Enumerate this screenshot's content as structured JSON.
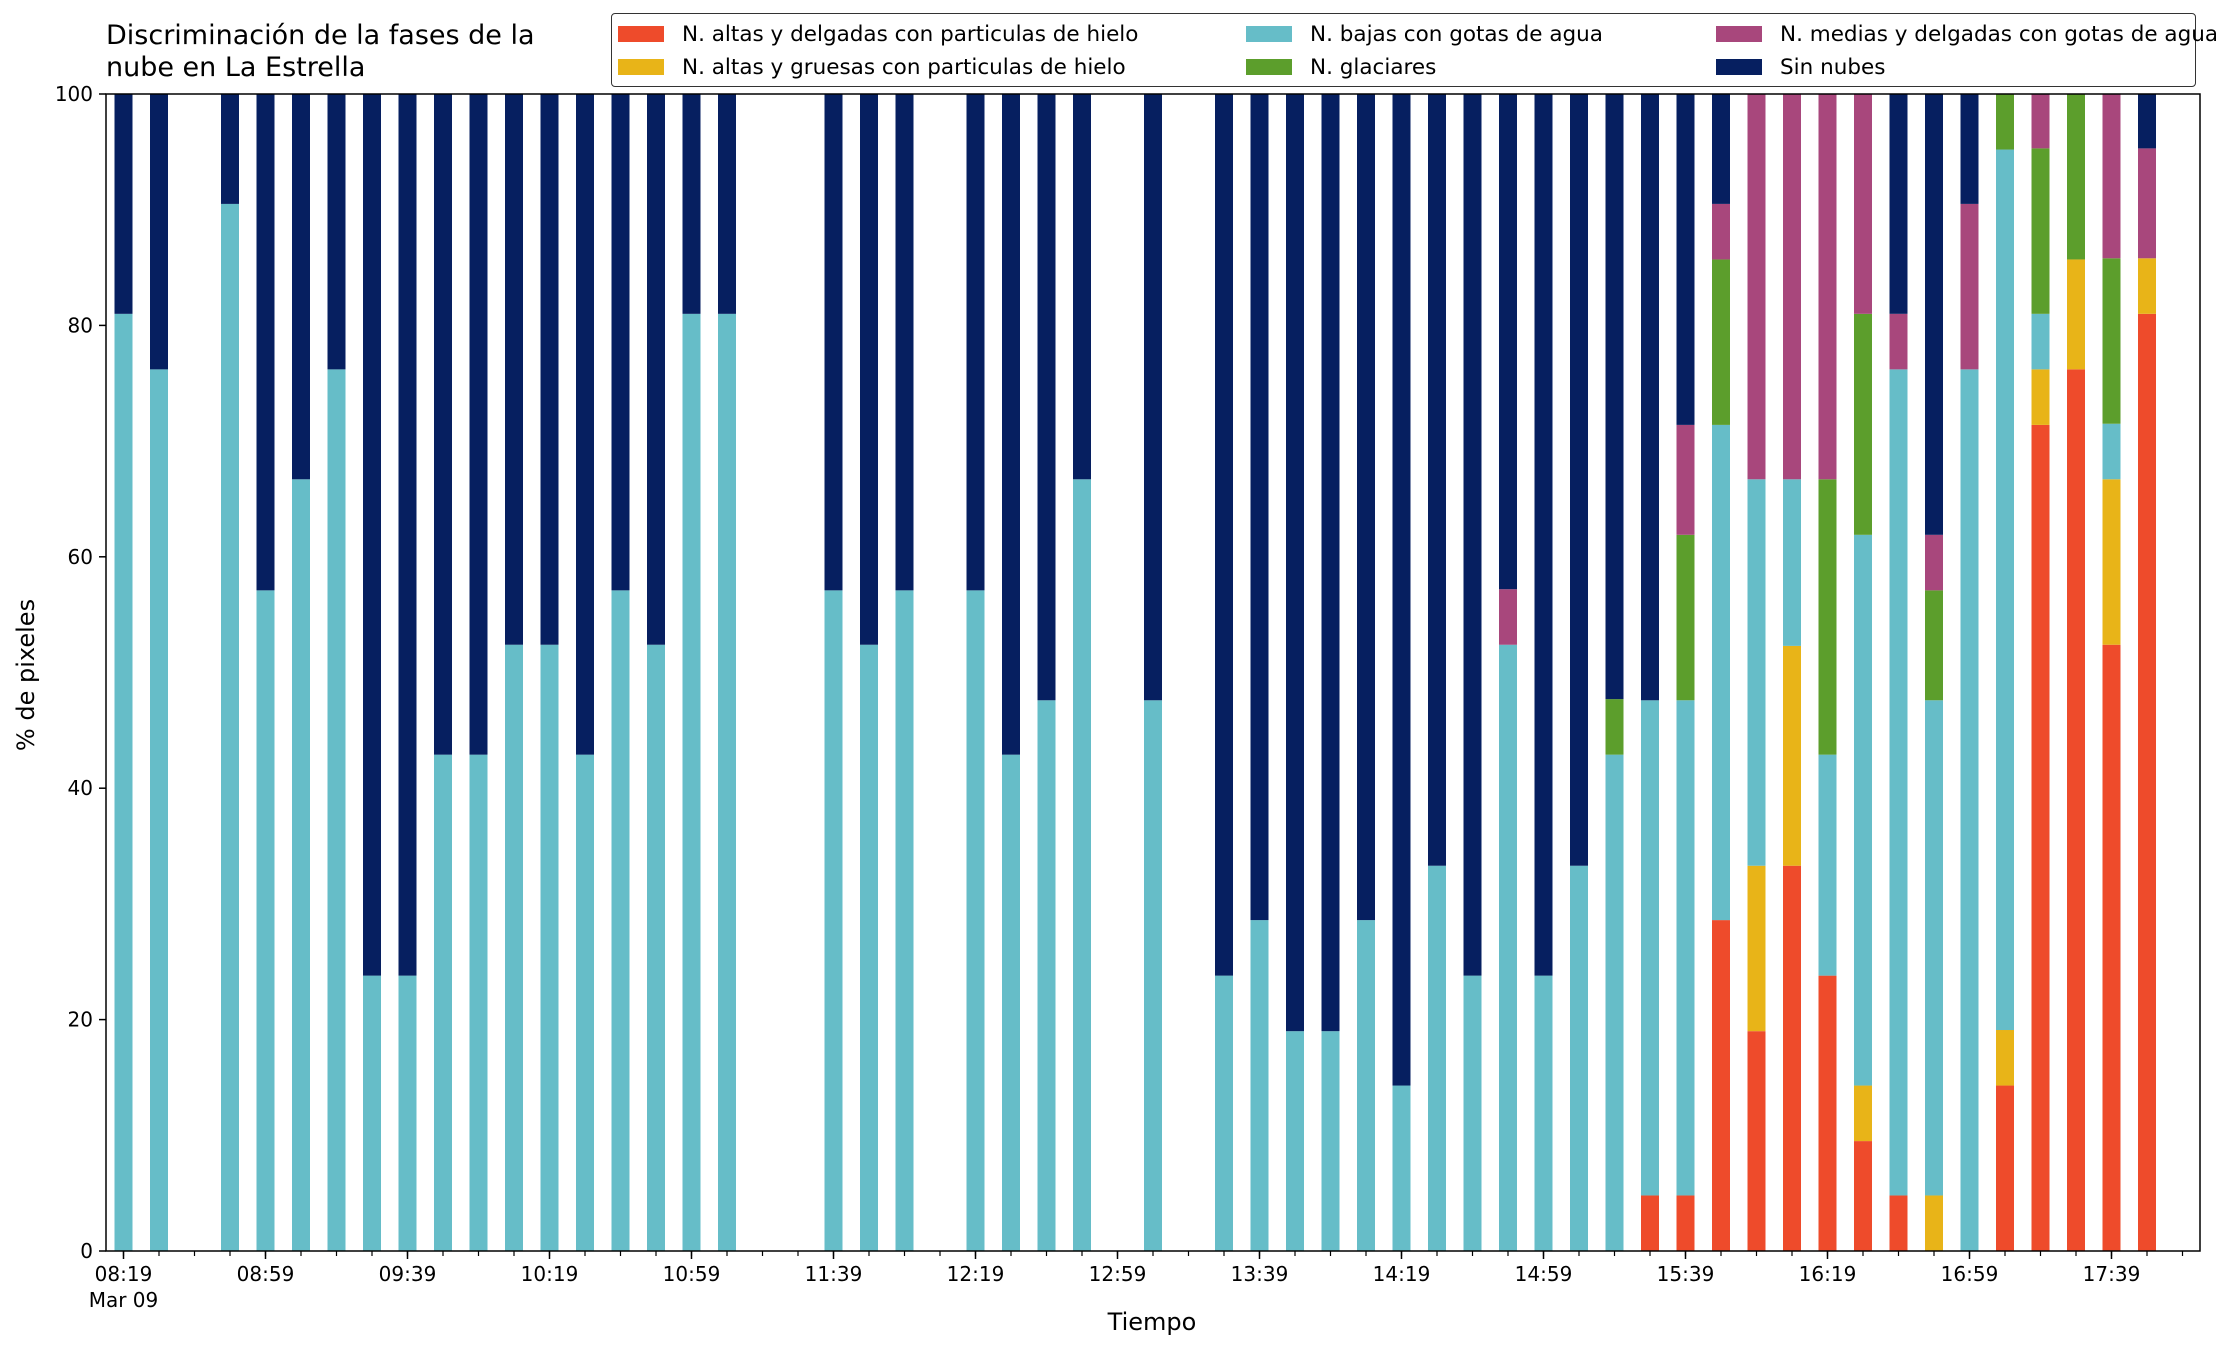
{
  "chart_data": {
    "type": "bar",
    "stacked": true,
    "title_line1": "Discriminación de la fases de la",
    "title_line2": "nube en La Estrella",
    "xlabel": "Tiempo",
    "ylabel": "% de pixeles",
    "ylim": [
      0,
      100
    ],
    "yticks": [
      "0",
      "20",
      "40",
      "60",
      "80",
      "100"
    ],
    "xtick_labels": [
      "08:19",
      "08:59",
      "09:39",
      "10:19",
      "10:59",
      "11:39",
      "12:19",
      "12:59",
      "13:39",
      "14:19",
      "14:59",
      "15:39",
      "16:19",
      "16:59",
      "17:39"
    ],
    "xtick_sublabel": "Mar 09",
    "time_start": "08:19",
    "interval_minutes": 10,
    "legend_location": "top-right",
    "grid": false,
    "series": [
      {
        "name": "N. altas y delgadas con particulas de hielo",
        "color": "#ee4b2b"
      },
      {
        "name": "N. altas y gruesas con particulas de hielo",
        "color": "#e8b418"
      },
      {
        "name": "N. bajas con gotas de agua",
        "color": "#66bdc8"
      },
      {
        "name": "N. glaciares",
        "color": "#5c9e2c"
      },
      {
        "name": "N. medias y delgadas con gotas de agua",
        "color": "#a8477c"
      },
      {
        "name": "Sin nubes",
        "color": "#061f60"
      }
    ],
    "bars": [
      {
        "time": "08:19",
        "values": [
          0,
          0,
          81,
          0,
          0,
          19
        ]
      },
      {
        "time": "08:29",
        "values": [
          0,
          0,
          76.2,
          0,
          0,
          23.8
        ]
      },
      {
        "time": "08:49",
        "values": [
          0,
          0,
          90.5,
          0,
          0,
          9.5
        ]
      },
      {
        "time": "08:59",
        "values": [
          0,
          0,
          57.1,
          0,
          0,
          42.9
        ]
      },
      {
        "time": "09:09",
        "values": [
          0,
          0,
          66.7,
          0,
          0,
          33.3
        ]
      },
      {
        "time": "09:19",
        "values": [
          0,
          0,
          76.2,
          0,
          0,
          23.8
        ]
      },
      {
        "time": "09:29",
        "values": [
          0,
          0,
          23.8,
          0,
          0,
          76.2
        ]
      },
      {
        "time": "09:39",
        "values": [
          0,
          0,
          23.8,
          0,
          0,
          76.2
        ]
      },
      {
        "time": "09:49",
        "values": [
          0,
          0,
          42.9,
          0,
          0,
          57.1
        ]
      },
      {
        "time": "09:59",
        "values": [
          0,
          0,
          42.9,
          0,
          0,
          57.1
        ]
      },
      {
        "time": "10:09",
        "values": [
          0,
          0,
          52.4,
          0,
          0,
          47.6
        ]
      },
      {
        "time": "10:19",
        "values": [
          0,
          0,
          52.4,
          0,
          0,
          47.6
        ]
      },
      {
        "time": "10:29",
        "values": [
          0,
          0,
          42.9,
          0,
          0,
          57.1
        ]
      },
      {
        "time": "10:39",
        "values": [
          0,
          0,
          57.1,
          0,
          0,
          42.9
        ]
      },
      {
        "time": "10:49",
        "values": [
          0,
          0,
          52.4,
          0,
          0,
          47.6
        ]
      },
      {
        "time": "10:59",
        "values": [
          0,
          0,
          81,
          0,
          0,
          19
        ]
      },
      {
        "time": "11:09",
        "values": [
          0,
          0,
          81,
          0,
          0,
          19
        ]
      },
      {
        "time": "11:39",
        "values": [
          0,
          0,
          57.1,
          0,
          0,
          42.9
        ]
      },
      {
        "time": "11:49",
        "values": [
          0,
          0,
          52.4,
          0,
          0,
          47.6
        ]
      },
      {
        "time": "11:59",
        "values": [
          0,
          0,
          57.1,
          0,
          0,
          42.9
        ]
      },
      {
        "time": "12:19",
        "values": [
          0,
          0,
          57.1,
          0,
          0,
          42.9
        ]
      },
      {
        "time": "12:29",
        "values": [
          0,
          0,
          42.9,
          0,
          0,
          57.1
        ]
      },
      {
        "time": "12:39",
        "values": [
          0,
          0,
          47.6,
          0,
          0,
          52.4
        ]
      },
      {
        "time": "12:49",
        "values": [
          0,
          0,
          66.7,
          0,
          0,
          33.3
        ]
      },
      {
        "time": "13:09",
        "values": [
          0,
          0,
          47.6,
          0,
          0,
          52.4
        ]
      },
      {
        "time": "13:29",
        "values": [
          0,
          0,
          23.8,
          0,
          0,
          76.2
        ]
      },
      {
        "time": "13:39",
        "values": [
          0,
          0,
          28.6,
          0,
          0,
          71.4
        ]
      },
      {
        "time": "13:49",
        "values": [
          0,
          0,
          19,
          0,
          0,
          81
        ]
      },
      {
        "time": "13:59",
        "values": [
          0,
          0,
          19,
          0,
          0,
          81
        ]
      },
      {
        "time": "14:09",
        "values": [
          0,
          0,
          28.6,
          0,
          0,
          71.4
        ]
      },
      {
        "time": "14:19",
        "values": [
          0,
          0,
          14.3,
          0,
          0,
          85.7
        ]
      },
      {
        "time": "14:29",
        "values": [
          0,
          0,
          33.3,
          0,
          0,
          66.7
        ]
      },
      {
        "time": "14:39",
        "values": [
          0,
          0,
          23.8,
          0,
          0,
          76.2
        ]
      },
      {
        "time": "14:49",
        "values": [
          0,
          0,
          52.4,
          0,
          4.8,
          42.8
        ]
      },
      {
        "time": "14:59",
        "values": [
          0,
          0,
          23.8,
          0,
          0,
          76.2
        ]
      },
      {
        "time": "15:09",
        "values": [
          0,
          0,
          33.3,
          0,
          0,
          66.7
        ]
      },
      {
        "time": "15:19",
        "values": [
          0,
          0,
          42.9,
          4.8,
          0,
          52.3
        ]
      },
      {
        "time": "15:29",
        "values": [
          4.8,
          0,
          42.8,
          0,
          0,
          52.4
        ]
      },
      {
        "time": "15:39",
        "values": [
          4.8,
          0,
          42.8,
          14.3,
          9.5,
          28.6
        ]
      },
      {
        "time": "15:49",
        "values": [
          28.6,
          0,
          42.8,
          14.3,
          4.8,
          9.5
        ]
      },
      {
        "time": "15:59",
        "values": [
          19,
          14.3,
          33.4,
          0,
          33.3,
          0
        ]
      },
      {
        "time": "16:09",
        "values": [
          33.3,
          19,
          14.4,
          0,
          33.3,
          0
        ]
      },
      {
        "time": "16:19",
        "values": [
          23.8,
          0,
          19.1,
          23.8,
          33.3,
          0
        ]
      },
      {
        "time": "16:29",
        "values": [
          9.5,
          4.8,
          47.6,
          19.1,
          19,
          0
        ]
      },
      {
        "time": "16:39",
        "values": [
          4.8,
          0,
          71.4,
          0,
          4.8,
          19
        ]
      },
      {
        "time": "16:49",
        "values": [
          0,
          4.8,
          42.8,
          9.5,
          4.8,
          38.1
        ]
      },
      {
        "time": "16:59",
        "values": [
          0,
          0,
          76.2,
          0,
          14.3,
          9.5
        ]
      },
      {
        "time": "17:09",
        "values": [
          14.3,
          4.8,
          76.1,
          4.8,
          0,
          0
        ]
      },
      {
        "time": "17:19",
        "values": [
          71.4,
          4.8,
          4.8,
          14.3,
          4.7,
          0
        ]
      },
      {
        "time": "17:29",
        "values": [
          76.2,
          9.5,
          0,
          14.3,
          0,
          0
        ]
      },
      {
        "time": "17:39",
        "values": [
          52.4,
          14.3,
          4.8,
          14.3,
          14.2,
          0
        ]
      },
      {
        "time": "17:49",
        "values": [
          81,
          4.8,
          0,
          0,
          9.5,
          4.7
        ]
      }
    ]
  }
}
